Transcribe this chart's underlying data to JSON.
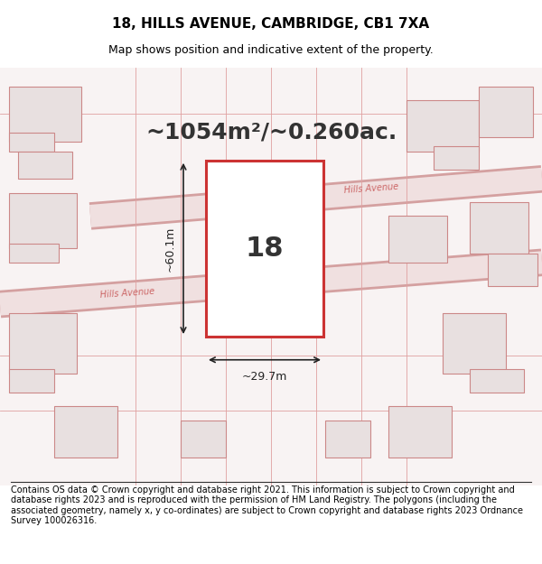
{
  "title": "18, HILLS AVENUE, CAMBRIDGE, CB1 7XA",
  "subtitle": "Map shows position and indicative extent of the property.",
  "area_text": "~1054m²/~0.260ac.",
  "label_18": "18",
  "dim_width": "~29.7m",
  "dim_height": "~60.1m",
  "road_label1": "Hills Avenue",
  "road_label2": "Hills Avenue",
  "footer": "Contains OS data © Crown copyright and database right 2021. This information is subject to Crown copyright and database rights 2023 and is reproduced with the permission of HM Land Registry. The polygons (including the associated geometry, namely x, y co-ordinates) are subject to Crown copyright and database rights 2023 Ordnance Survey 100026316.",
  "bg_color": "#f5f0f0",
  "map_bg": "#f8f3f3",
  "plot_color": "#cc3333",
  "road_color": "#e8b0b0",
  "building_fill": "#e8e0e0",
  "building_stroke": "#cc8888",
  "line_color": "#333333",
  "title_fontsize": 11,
  "subtitle_fontsize": 9,
  "area_fontsize": 18,
  "footer_fontsize": 7
}
